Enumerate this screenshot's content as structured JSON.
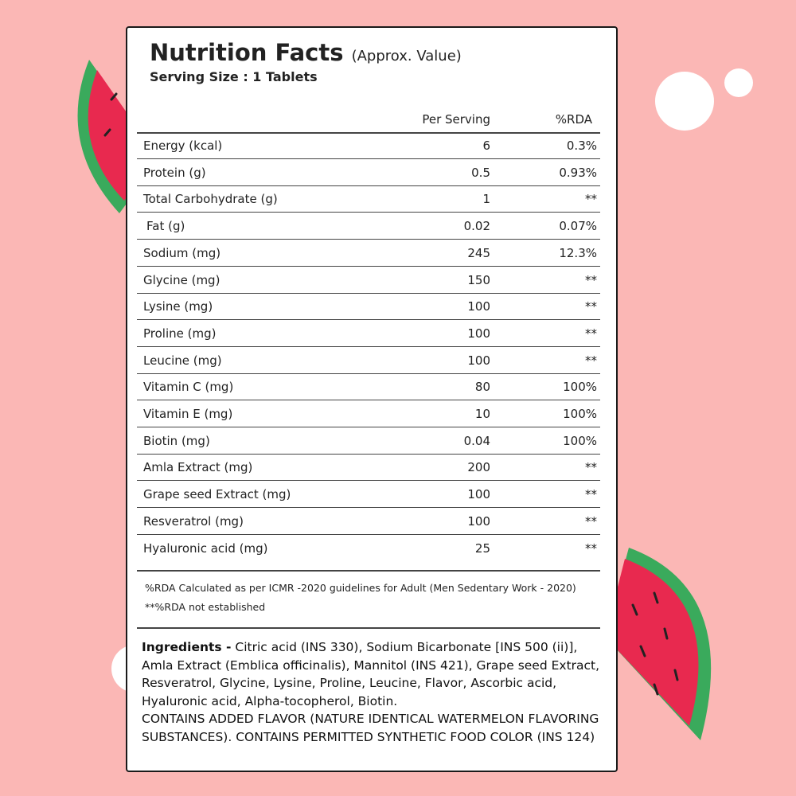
{
  "header": {
    "title": "Nutrition Facts",
    "subtitle": "(Approx. Value)",
    "serving": "Serving Size : 1 Tablets"
  },
  "table": {
    "columns": [
      "Per Serving",
      "%RDA"
    ],
    "rows": [
      [
        "Energy (kcal)",
        "6",
        "0.3%"
      ],
      [
        "Protein (g)",
        "0.5",
        "0.93%"
      ],
      [
        "Total Carbohydrate (g)",
        "1",
        "**"
      ],
      [
        "Fat (g)",
        "0.02",
        "0.07%"
      ],
      [
        "Sodium (mg)",
        "245",
        "12.3%"
      ],
      [
        "Glycine (mg)",
        "150",
        "**"
      ],
      [
        "Lysine (mg)",
        "100",
        "**"
      ],
      [
        "Proline (mg)",
        "100",
        "**"
      ],
      [
        "Leucine (mg)",
        "100",
        "**"
      ],
      [
        "Vitamin C (mg)",
        "80",
        "100%"
      ],
      [
        "Vitamin E (mg)",
        "10",
        "100%"
      ],
      [
        "Biotin (mg)",
        "0.04",
        "100%"
      ],
      [
        "Amla Extract (mg)",
        "200",
        "**"
      ],
      [
        "Grape seed Extract (mg)",
        "100",
        "**"
      ],
      [
        "Resveratrol (mg)",
        "100",
        "**"
      ],
      [
        "Hyaluronic acid (mg)",
        "25",
        "**"
      ]
    ]
  },
  "footnotes": [
    "%RDA Calculated  as per ICMR -2020 guidelines for Adult (Men Sedentary Work - 2020)",
    "**%RDA not established"
  ],
  "ingredients": {
    "label": "Ingredients -",
    "text": "Citric acid (INS 330), Sodium Bicarbonate [INS 500 (ii)], Amla Extract (Emblica officinalis), Mannitol (INS 421), Grape seed Extract, Resveratrol, Glycine, Lysine, Proline, Leucine, Flavor, Ascorbic acid, Hyaluronic acid, Alpha-tocopherol, Biotin.",
    "notes": "CONTAINS ADDED FLAVOR (NATURE IDENTICAL WATERMELON FLAVORING SUBSTANCES). CONTAINS PERMITTED SYNTHETIC FOOD COLOR (INS 124)"
  }
}
